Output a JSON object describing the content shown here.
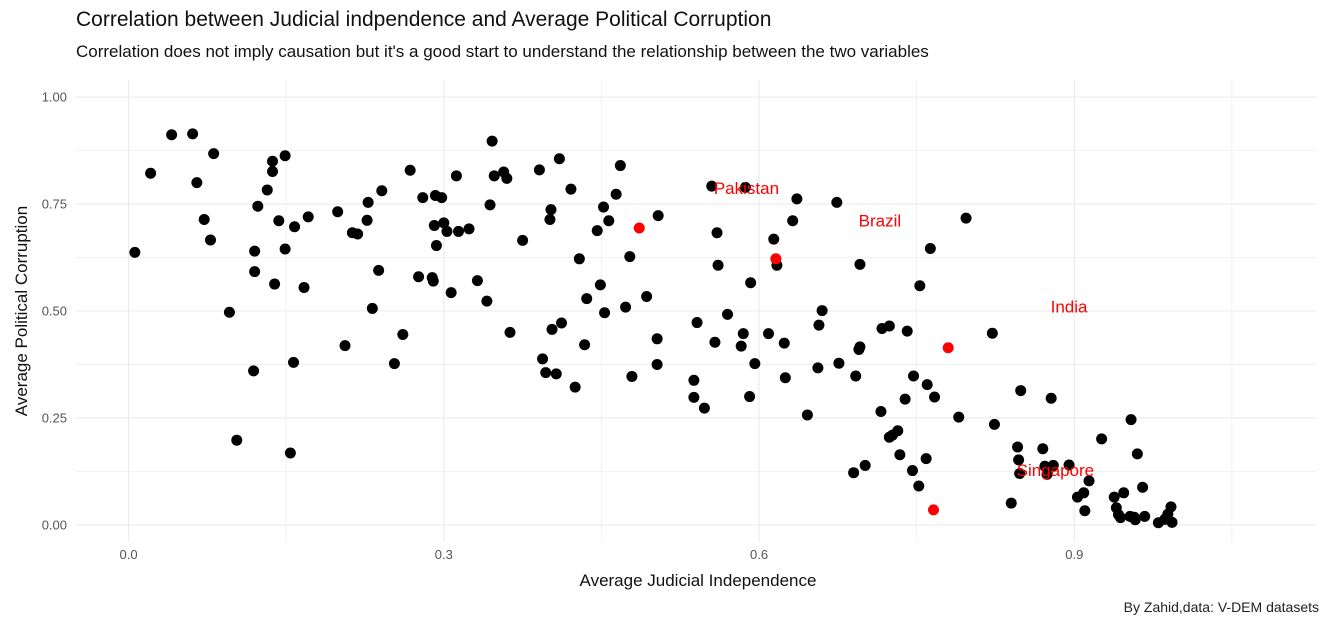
{
  "title": "Correlation between Judicial indpendence and Average Political Corruption",
  "subtitle": "Correlation does not imply causation but it's a good start to understand the relationship between the two variables",
  "caption": "By Zahid,data: V-DEM datasets",
  "colors": {
    "point": "#000000",
    "highlight": "#ff0000",
    "label": "#ff0000",
    "grid": "#ebebeb"
  },
  "chart_data": {
    "type": "scatter",
    "title": "Correlation between Judicial indpendence and Average Political Corruption",
    "xlabel": "Average Judicial Independence",
    "ylabel": "Average Political Corruption",
    "xlim": [
      -0.05,
      1.13
    ],
    "ylim": [
      -0.04,
      1.04
    ],
    "x_ticks": [
      0.0,
      0.3,
      0.6,
      0.9
    ],
    "x_tick_labels": [
      "0.0",
      "0.3",
      "0.6",
      "0.9"
    ],
    "y_ticks": [
      0.0,
      0.25,
      0.5,
      0.75,
      1.0
    ],
    "y_tick_labels": [
      "0.00",
      "0.25",
      "0.50",
      "0.75",
      "1.00"
    ],
    "grid": true,
    "points": [
      [
        0.006,
        0.637
      ],
      [
        0.021,
        0.822
      ],
      [
        0.041,
        0.912
      ],
      [
        0.061,
        0.914
      ],
      [
        0.065,
        0.8
      ],
      [
        0.072,
        0.714
      ],
      [
        0.078,
        0.666
      ],
      [
        0.081,
        0.868
      ],
      [
        0.096,
        0.497
      ],
      [
        0.103,
        0.198
      ],
      [
        0.119,
        0.36
      ],
      [
        0.12,
        0.592
      ],
      [
        0.12,
        0.64
      ],
      [
        0.123,
        0.745
      ],
      [
        0.132,
        0.783
      ],
      [
        0.137,
        0.826
      ],
      [
        0.137,
        0.85
      ],
      [
        0.139,
        0.563
      ],
      [
        0.143,
        0.711
      ],
      [
        0.149,
        0.863
      ],
      [
        0.149,
        0.645
      ],
      [
        0.154,
        0.168
      ],
      [
        0.157,
        0.38
      ],
      [
        0.158,
        0.697
      ],
      [
        0.167,
        0.555
      ],
      [
        0.171,
        0.72
      ],
      [
        0.199,
        0.732
      ],
      [
        0.206,
        0.419
      ],
      [
        0.213,
        0.683
      ],
      [
        0.218,
        0.68
      ],
      [
        0.227,
        0.712
      ],
      [
        0.228,
        0.754
      ],
      [
        0.232,
        0.506
      ],
      [
        0.238,
        0.595
      ],
      [
        0.241,
        0.781
      ],
      [
        0.253,
        0.377
      ],
      [
        0.261,
        0.445
      ],
      [
        0.268,
        0.829
      ],
      [
        0.276,
        0.58
      ],
      [
        0.28,
        0.765
      ],
      [
        0.289,
        0.578
      ],
      [
        0.29,
        0.57
      ],
      [
        0.291,
        0.7
      ],
      [
        0.292,
        0.77
      ],
      [
        0.293,
        0.653
      ],
      [
        0.298,
        0.765
      ],
      [
        0.3,
        0.706
      ],
      [
        0.303,
        0.686
      ],
      [
        0.307,
        0.543
      ],
      [
        0.312,
        0.816
      ],
      [
        0.314,
        0.686
      ],
      [
        0.324,
        0.692
      ],
      [
        0.332,
        0.571
      ],
      [
        0.341,
        0.523
      ],
      [
        0.344,
        0.748
      ],
      [
        0.346,
        0.897
      ],
      [
        0.348,
        0.816
      ],
      [
        0.357,
        0.825
      ],
      [
        0.36,
        0.81
      ],
      [
        0.363,
        0.45
      ],
      [
        0.375,
        0.665
      ],
      [
        0.391,
        0.83
      ],
      [
        0.394,
        0.388
      ],
      [
        0.397,
        0.356
      ],
      [
        0.402,
        0.737
      ],
      [
        0.401,
        0.714
      ],
      [
        0.403,
        0.457
      ],
      [
        0.407,
        0.353
      ],
      [
        0.41,
        0.856
      ],
      [
        0.412,
        0.472
      ],
      [
        0.421,
        0.785
      ],
      [
        0.425,
        0.322
      ],
      [
        0.429,
        0.622
      ],
      [
        0.434,
        0.421
      ],
      [
        0.436,
        0.529
      ],
      [
        0.446,
        0.688
      ],
      [
        0.449,
        0.561
      ],
      [
        0.452,
        0.743
      ],
      [
        0.453,
        0.496
      ],
      [
        0.457,
        0.711
      ],
      [
        0.464,
        0.773
      ],
      [
        0.468,
        0.84
      ],
      [
        0.473,
        0.509
      ],
      [
        0.477,
        0.627
      ],
      [
        0.479,
        0.347
      ],
      [
        0.493,
        0.534
      ],
      [
        0.503,
        0.435
      ],
      [
        0.503,
        0.375
      ],
      [
        0.504,
        0.723
      ],
      [
        0.538,
        0.338
      ],
      [
        0.538,
        0.298
      ],
      [
        0.541,
        0.473
      ],
      [
        0.548,
        0.273
      ],
      [
        0.555,
        0.792
      ],
      [
        0.558,
        0.427
      ],
      [
        0.56,
        0.683
      ],
      [
        0.561,
        0.607
      ],
      [
        0.57,
        0.492
      ],
      [
        0.583,
        0.418
      ],
      [
        0.585,
        0.447
      ],
      [
        0.587,
        0.789
      ],
      [
        0.591,
        0.3
      ],
      [
        0.592,
        0.566
      ],
      [
        0.596,
        0.377
      ],
      [
        0.609,
        0.447
      ],
      [
        0.614,
        0.668
      ],
      [
        0.617,
        0.607
      ],
      [
        0.624,
        0.425
      ],
      [
        0.625,
        0.344
      ],
      [
        0.632,
        0.711
      ],
      [
        0.636,
        0.762
      ],
      [
        0.646,
        0.257
      ],
      [
        0.656,
        0.367
      ],
      [
        0.657,
        0.467
      ],
      [
        0.66,
        0.501
      ],
      [
        0.674,
        0.754
      ],
      [
        0.676,
        0.378
      ],
      [
        0.69,
        0.122
      ],
      [
        0.692,
        0.348
      ],
      [
        0.695,
        0.41
      ],
      [
        0.696,
        0.416
      ],
      [
        0.696,
        0.609
      ],
      [
        0.701,
        0.139
      ],
      [
        0.716,
        0.265
      ],
      [
        0.717,
        0.459
      ],
      [
        0.724,
        0.465
      ],
      [
        0.724,
        0.205
      ],
      [
        0.727,
        0.21
      ],
      [
        0.732,
        0.22
      ],
      [
        0.734,
        0.164
      ],
      [
        0.739,
        0.294
      ],
      [
        0.741,
        0.453
      ],
      [
        0.746,
        0.127
      ],
      [
        0.747,
        0.348
      ],
      [
        0.752,
        0.091
      ],
      [
        0.753,
        0.559
      ],
      [
        0.759,
        0.155
      ],
      [
        0.76,
        0.328
      ],
      [
        0.763,
        0.646
      ],
      [
        0.767,
        0.299
      ],
      [
        0.79,
        0.252
      ],
      [
        0.797,
        0.717
      ],
      [
        0.822,
        0.448
      ],
      [
        0.824,
        0.235
      ],
      [
        0.84,
        0.051
      ],
      [
        0.846,
        0.182
      ],
      [
        0.847,
        0.152
      ],
      [
        0.848,
        0.12
      ],
      [
        0.849,
        0.314
      ],
      [
        0.87,
        0.178
      ],
      [
        0.872,
        0.137
      ],
      [
        0.874,
        0.118
      ],
      [
        0.878,
        0.296
      ],
      [
        0.88,
        0.139
      ],
      [
        0.895,
        0.14
      ],
      [
        0.903,
        0.065
      ],
      [
        0.909,
        0.075
      ],
      [
        0.91,
        0.033
      ],
      [
        0.914,
        0.103
      ],
      [
        0.926,
        0.201
      ],
      [
        0.938,
        0.065
      ],
      [
        0.94,
        0.04
      ],
      [
        0.942,
        0.024
      ],
      [
        0.944,
        0.017
      ],
      [
        0.947,
        0.075
      ],
      [
        0.953,
        0.02
      ],
      [
        0.954,
        0.246
      ],
      [
        0.957,
        0.018
      ],
      [
        0.958,
        0.012
      ],
      [
        0.96,
        0.166
      ],
      [
        0.965,
        0.088
      ],
      [
        0.967,
        0.02
      ],
      [
        0.98,
        0.005
      ],
      [
        0.986,
        0.013
      ],
      [
        0.989,
        0.025
      ],
      [
        0.992,
        0.042
      ],
      [
        0.993,
        0.006
      ]
    ],
    "highlights": [
      {
        "name": "Pakistan",
        "x": 0.486,
        "y": 0.694
      },
      {
        "name": "Brazil",
        "x": 0.616,
        "y": 0.622
      },
      {
        "name": "India",
        "x": 0.78,
        "y": 0.414
      },
      {
        "name": "Singapore",
        "x": 0.766,
        "y": 0.035
      }
    ],
    "annotations": [
      {
        "text": "Pakistan",
        "x": 0.588,
        "y": 0.787
      },
      {
        "text": "Brazil",
        "x": 0.715,
        "y": 0.712
      },
      {
        "text": "India",
        "x": 0.895,
        "y": 0.51
      },
      {
        "text": "Singapore",
        "x": 0.882,
        "y": 0.128
      }
    ]
  }
}
